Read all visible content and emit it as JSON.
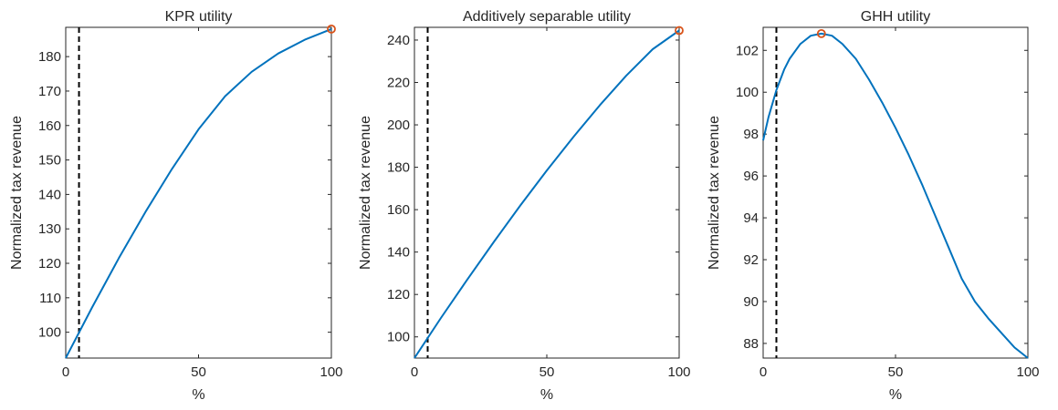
{
  "chart_data": [
    {
      "type": "line",
      "title": "KPR utility",
      "xlabel": "%",
      "ylabel": "Normalized tax revenue",
      "xlim": [
        0,
        100
      ],
      "ylim": [
        92.5,
        188.5
      ],
      "xticks": [
        0,
        50,
        100
      ],
      "yticks": [
        100,
        110,
        120,
        130,
        140,
        150,
        160,
        170,
        180
      ],
      "grid": false,
      "reference_line_x": 5,
      "series": [
        {
          "color": "#0072BD",
          "x": [
            0,
            10,
            20,
            30,
            40,
            50,
            60,
            70,
            80,
            90,
            100
          ],
          "y": [
            92.5,
            107.3,
            121.5,
            134.9,
            147.4,
            158.9,
            168.5,
            175.6,
            180.9,
            184.9,
            188.0
          ]
        }
      ],
      "marker": {
        "x": 100,
        "y": 188.0,
        "color": "#D95319"
      }
    },
    {
      "type": "line",
      "title": "Additively separable utility",
      "xlabel": "%",
      "ylabel": "Normalized tax revenue",
      "xlim": [
        0,
        100
      ],
      "ylim": [
        90,
        246
      ],
      "xticks": [
        0,
        50,
        100
      ],
      "yticks": [
        100,
        120,
        140,
        160,
        180,
        200,
        220,
        240
      ],
      "grid": false,
      "reference_line_x": 5,
      "series": [
        {
          "color": "#0072BD",
          "x": [
            0,
            10,
            20,
            30,
            40,
            50,
            60,
            70,
            80,
            90,
            100
          ],
          "y": [
            90.0,
            108.9,
            127.1,
            144.8,
            162.0,
            178.5,
            194.2,
            209.2,
            223.2,
            235.7,
            244.5
          ]
        }
      ],
      "marker": {
        "x": 100,
        "y": 244.5,
        "color": "#D95319"
      }
    },
    {
      "type": "line",
      "title": "GHH utility",
      "xlabel": "%",
      "ylabel": "Normalized tax revenue",
      "xlim": [
        0,
        100
      ],
      "ylim": [
        87.3,
        103.1
      ],
      "xticks": [
        0,
        50,
        100
      ],
      "yticks": [
        88,
        90,
        92,
        94,
        96,
        98,
        100,
        102
      ],
      "grid": false,
      "reference_line_x": 5,
      "series": [
        {
          "color": "#0072BD",
          "x": [
            0,
            2,
            5,
            8,
            10,
            14,
            18,
            22,
            26,
            30,
            35,
            40,
            45,
            50,
            55,
            60,
            65,
            70,
            75,
            80,
            85,
            90,
            95,
            100
          ],
          "y": [
            97.7,
            98.8,
            100.1,
            101.1,
            101.6,
            102.3,
            102.7,
            102.8,
            102.7,
            102.3,
            101.6,
            100.6,
            99.5,
            98.3,
            97.0,
            95.6,
            94.1,
            92.6,
            91.1,
            90.0,
            89.2,
            88.5,
            87.8,
            87.3
          ]
        }
      ],
      "marker": {
        "x": 22,
        "y": 102.8,
        "color": "#D95319"
      }
    }
  ]
}
